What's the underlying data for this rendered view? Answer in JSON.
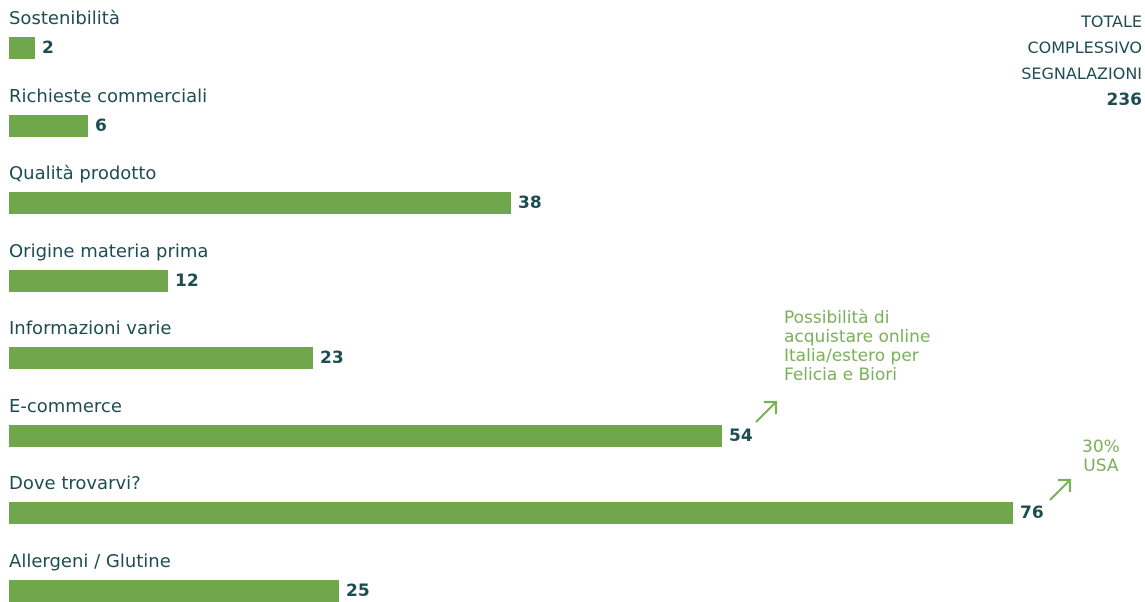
{
  "colors": {
    "bar": "#70a74d",
    "text": "#1d4d52",
    "note": "#7ab05a"
  },
  "total": {
    "lines": [
      "TOTALE",
      "COMPLESSIVO",
      "SEGNALAZIONI"
    ],
    "value": "236"
  },
  "notes": {
    "ecommerce": [
      "Possibilità di",
      "acquistare online",
      "Italia/estero per",
      "Felicia e Biori"
    ],
    "dove": [
      "30%",
      "USA"
    ]
  },
  "chart_data": {
    "type": "bar",
    "orientation": "horizontal",
    "categories": [
      "Sostenibilità",
      "Richieste commerciali",
      "Qualità prodotto",
      "Origine materia prima",
      "Informazioni varie",
      "E-commerce",
      "Dove trovarvi?",
      "Allergeni / Glutine"
    ],
    "values": [
      2,
      6,
      38,
      12,
      23,
      54,
      76,
      25
    ],
    "xlim": [
      0,
      76
    ],
    "grid": false,
    "legend": "none"
  }
}
